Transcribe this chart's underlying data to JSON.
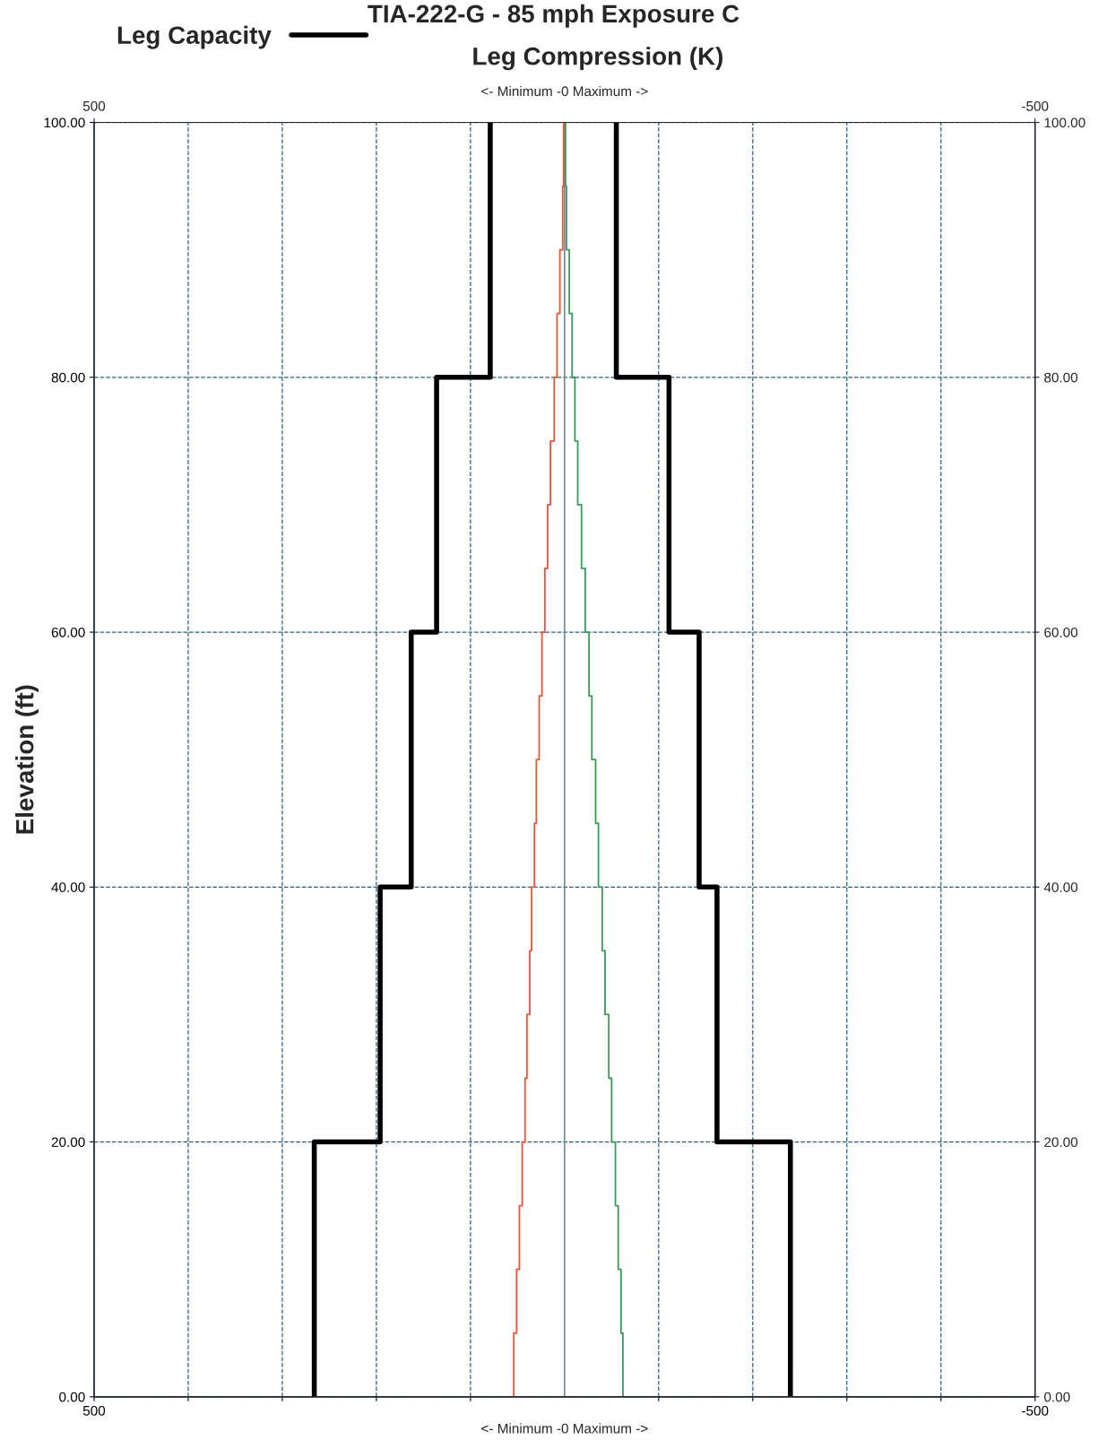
{
  "chart_data": {
    "type": "step",
    "orientation": "horizontal",
    "title": "TIA-222-G - 85 mph Exposure C",
    "subtitle": "Leg Compression (K)",
    "xlabel": "<- Minimum -0 Maximum ->",
    "x2label": "<- Minimum -0 Maximum ->",
    "ylabel": "Elevation (ft)",
    "xlim": [
      500,
      -500
    ],
    "x2lim": [
      500,
      -500
    ],
    "xticks": [
      500,
      {
        "value": 400,
        "label": null
      },
      {
        "value": 300,
        "label": null
      },
      {
        "value": 200,
        "label": null
      },
      {
        "value": 100,
        "label": null
      },
      {
        "value": -100,
        "label": null
      },
      {
        "value": -200,
        "label": null
      },
      {
        "value": -300,
        "label": null
      },
      {
        "value": -400,
        "label": null
      },
      -500
    ],
    "x2ticks": [
      500,
      -500
    ],
    "ylim": [
      0,
      100
    ],
    "y2lim": [
      0,
      100
    ],
    "yticks": [
      {
        "value": 0,
        "label": "0.00"
      },
      {
        "value": 20,
        "label": "20.00"
      },
      {
        "value": 40,
        "label": "40.00"
      },
      {
        "value": 60,
        "label": "60.00"
      },
      {
        "value": 80,
        "label": "80.00"
      },
      {
        "value": 100,
        "label": "100.00"
      }
    ],
    "y2ticks": [
      {
        "value": 0,
        "label": "0.00"
      },
      {
        "value": 20,
        "label": "20.00"
      },
      {
        "value": 40,
        "label": "40.00"
      },
      {
        "value": 60,
        "label": "60.00"
      },
      {
        "value": 80,
        "label": "80.00"
      },
      {
        "value": 100,
        "label": "100.00"
      }
    ],
    "grid": true,
    "legend": "top left",
    "line_style": "solid",
    "marker": "none",
    "ref_lines": [
      {
        "axis": "x",
        "value": 0,
        "color": "#6f8c96",
        "line_style": "solid"
      }
    ],
    "series": [
      {
        "name": "Leg Capacity",
        "color": "#000000",
        "x": [
          0,
          20,
          40,
          60,
          80,
          100
        ],
        "values": [
          266,
          196,
          163,
          136,
          79,
          79
        ]
      },
      {
        "color": "#000000",
        "x": [
          0,
          20,
          40,
          60,
          80,
          100
        ],
        "values": [
          -240,
          -162,
          -143,
          -111,
          -55,
          -55
        ]
      },
      {
        "color": "#e8553a",
        "x": [
          0,
          5,
          10,
          15,
          20,
          25,
          30,
          35,
          40,
          45,
          50,
          55,
          60,
          65,
          70,
          75,
          80,
          85,
          90,
          95,
          100
        ],
        "values": [
          54,
          51,
          48,
          45,
          42,
          40,
          37,
          35,
          32,
          30,
          27,
          24,
          21,
          18,
          15,
          11,
          8,
          5,
          2,
          1,
          1
        ]
      },
      {
        "color": "#3a9a5a",
        "x": [
          0,
          5,
          10,
          15,
          20,
          25,
          30,
          35,
          40,
          45,
          50,
          55,
          60,
          65,
          70,
          75,
          80,
          85,
          90,
          95,
          100
        ],
        "values": [
          -62,
          -60,
          -57,
          -54,
          -50,
          -47,
          -43,
          -40,
          -36,
          -33,
          -29,
          -26,
          -22,
          -18,
          -14,
          -11,
          -8,
          -5,
          -2,
          -1,
          -1
        ]
      }
    ]
  }
}
